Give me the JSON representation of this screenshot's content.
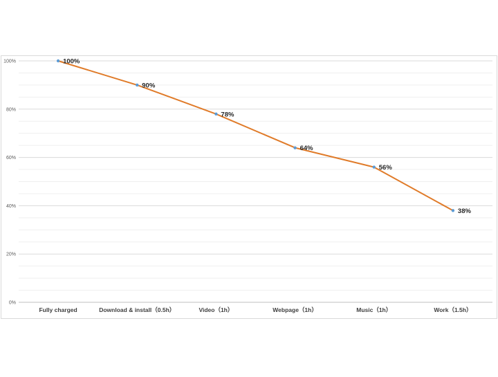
{
  "chart_data": {
    "type": "line",
    "categories": [
      "Fully charged",
      "Download & install（0.5h）",
      "Video（1h）",
      "Webpage（1h）",
      "Music（1h）",
      "Work（1.5h）"
    ],
    "series": [
      {
        "values": [
          100,
          90,
          78,
          64,
          56,
          38
        ]
      }
    ],
    "data_labels": [
      "100%",
      "90%",
      "78%",
      "64%",
      "56%",
      "38%"
    ],
    "y_ticks": [
      "0%",
      "20%",
      "40%",
      "60%",
      "80%",
      "100%"
    ],
    "ylim": [
      0,
      100
    ],
    "grid": true,
    "legend": "none",
    "colors": {
      "line": "#E07B29",
      "marker": "#5B9BD5",
      "grid": "#E3E3E3",
      "frame": "#D9D9D9"
    }
  }
}
